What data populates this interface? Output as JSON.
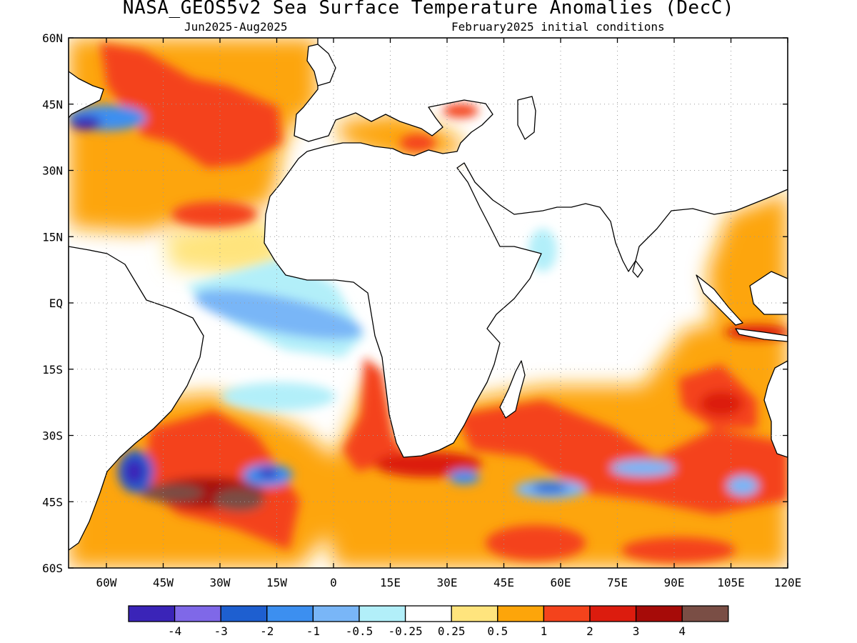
{
  "title": "NASA_GEOS5v2 Sea Surface Temperature Anomalies (DecC)",
  "subtitle_left": "Jun2025-Aug2025",
  "subtitle_right": "February2025 initial conditions",
  "map": {
    "projection": "equirectangular",
    "lon_range": [
      -70,
      120
    ],
    "lat_range": [
      -60,
      60
    ],
    "grid": true,
    "lat_ticks": [
      {
        "value": 60,
        "label": "60N"
      },
      {
        "value": 45,
        "label": "45N"
      },
      {
        "value": 30,
        "label": "30N"
      },
      {
        "value": 15,
        "label": "15N"
      },
      {
        "value": 0,
        "label": "EQ"
      },
      {
        "value": -15,
        "label": "15S"
      },
      {
        "value": -30,
        "label": "30S"
      },
      {
        "value": -45,
        "label": "45S"
      },
      {
        "value": -60,
        "label": "60S"
      }
    ],
    "lon_ticks": [
      {
        "value": -60,
        "label": "60W"
      },
      {
        "value": -45,
        "label": "45W"
      },
      {
        "value": -30,
        "label": "30W"
      },
      {
        "value": -15,
        "label": "15W"
      },
      {
        "value": 0,
        "label": "0"
      },
      {
        "value": 15,
        "label": "15E"
      },
      {
        "value": 30,
        "label": "30E"
      },
      {
        "value": 45,
        "label": "45E"
      },
      {
        "value": 60,
        "label": "60E"
      },
      {
        "value": 75,
        "label": "75E"
      },
      {
        "value": 90,
        "label": "90E"
      },
      {
        "value": 105,
        "label": "105E"
      },
      {
        "value": 120,
        "label": "120E"
      }
    ]
  },
  "colorbar": {
    "colors": [
      "#3a24b8",
      "#7f68e8",
      "#1e5fd0",
      "#3c8ff0",
      "#79b6f7",
      "#b2eff9",
      "#ffffff",
      "#ffe47d",
      "#fda50a",
      "#f4431c",
      "#dc1c0e",
      "#a60b08",
      "#7a4e45"
    ],
    "labels": [
      "-4",
      "-3",
      "-2",
      "-1",
      "-0.5",
      "-0.25",
      "0.25",
      "0.5",
      "1",
      "2",
      "3",
      "4"
    ]
  },
  "anomaly_regions": [
    {
      "name": "north-atlantic-warm",
      "level": 1,
      "lon": [
        -70,
        -8
      ],
      "lat": [
        25,
        60
      ]
    },
    {
      "name": "north-atlantic-core",
      "level": 2,
      "lon": [
        -55,
        -25
      ],
      "lat": [
        32,
        58
      ]
    },
    {
      "name": "newfoundland-cool",
      "level": -2,
      "lon": [
        -70,
        -45
      ],
      "lat": [
        38,
        48
      ]
    },
    {
      "name": "gulf-of-guinea-cool",
      "level": -1,
      "lon": [
        -30,
        5
      ],
      "lat": [
        -10,
        3
      ]
    },
    {
      "name": "south-atlantic-warm",
      "level": 2,
      "lon": [
        -55,
        -5
      ],
      "lat": [
        -55,
        -25
      ]
    },
    {
      "name": "south-atlantic-hot",
      "level": 4,
      "lon": [
        -50,
        -20
      ],
      "lat": [
        -50,
        -40
      ]
    },
    {
      "name": "falklands-cool",
      "level": -3,
      "lon": [
        -58,
        -50
      ],
      "lat": [
        -45,
        -35
      ]
    },
    {
      "name": "agulhas-warm",
      "level": 2,
      "lon": [
        5,
        60
      ],
      "lat": [
        -45,
        -25
      ]
    },
    {
      "name": "southern-indian-cool",
      "level": -1,
      "lon": [
        45,
        60
      ],
      "lat": [
        -47,
        -40
      ]
    },
    {
      "name": "southern-indian-warm",
      "level": 2,
      "lon": [
        30,
        120
      ],
      "lat": [
        -60,
        -35
      ]
    },
    {
      "name": "west-australia-warm",
      "level": 2,
      "lon": [
        85,
        120
      ],
      "lat": [
        -35,
        -10
      ]
    },
    {
      "name": "maritime-continent-warm",
      "level": 1,
      "lon": [
        95,
        120
      ],
      "lat": [
        -10,
        20
      ]
    },
    {
      "name": "mediterranean-warm",
      "level": 1,
      "lon": [
        0,
        35
      ],
      "lat": [
        31,
        45
      ]
    }
  ]
}
